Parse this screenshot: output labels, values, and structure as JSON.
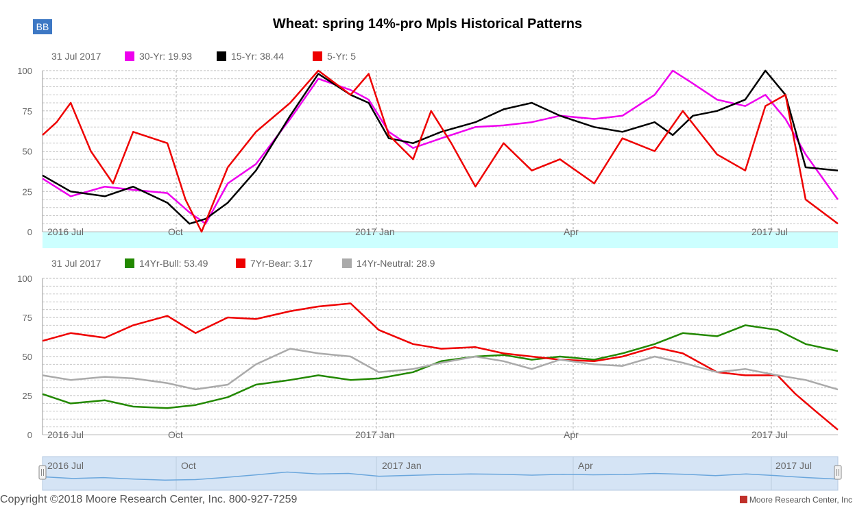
{
  "toolbar": {
    "bb_label": "BB"
  },
  "title": "Wheat: spring 14%-pro Mpls Historical Patterns",
  "footer": {
    "copyright": "Copyright ©2018 Moore Research Center, Inc. 800-927-7259",
    "brand": "Moore Research Center, Inc"
  },
  "colors": {
    "magenta": "#ee00ee",
    "black": "#000000",
    "red": "#ee0000",
    "green": "#228800",
    "gray": "#aaaaaa",
    "navigator_line": "#6aa6dc",
    "navigator_bg": "#d5e4f5",
    "band": "#ccffff"
  },
  "chart_data": [
    {
      "type": "line",
      "legend_date": "31 Jul 2017",
      "legend": [
        {
          "label": "30-Yr: 19.93",
          "color": "#ee00ee"
        },
        {
          "label": "15-Yr: 38.44",
          "color": "#000000"
        },
        {
          "label": "5-Yr: 5",
          "color": "#ee0000"
        }
      ],
      "ylim": [
        0,
        100
      ],
      "yticks": [
        0,
        25,
        50,
        75,
        100
      ],
      "x_labels": [
        "2016 Jul",
        "Oct",
        "2017 Jan",
        "Apr",
        "2017 Jul"
      ],
      "x_range": [
        "2016-07-01",
        "2017-07-31"
      ],
      "series": [
        {
          "name": "30-Yr",
          "color": "#ee00ee",
          "x": [
            "2016-07-01",
            "2016-07-15",
            "2016-08-01",
            "2016-08-15",
            "2016-09-01",
            "2016-09-12",
            "2016-09-20",
            "2016-10-01",
            "2016-10-15",
            "2016-11-01",
            "2016-11-15",
            "2016-12-01",
            "2016-12-10",
            "2016-12-20",
            "2017-01-01",
            "2017-01-15",
            "2017-02-01",
            "2017-02-15",
            "2017-03-01",
            "2017-03-15",
            "2017-04-01",
            "2017-04-15",
            "2017-05-01",
            "2017-05-10",
            "2017-05-20",
            "2017-06-01",
            "2017-06-15",
            "2017-06-25",
            "2017-07-05",
            "2017-07-15",
            "2017-07-31"
          ],
          "y": [
            33,
            22,
            28,
            26,
            24,
            12,
            5,
            30,
            42,
            70,
            95,
            88,
            82,
            62,
            52,
            58,
            65,
            66,
            68,
            72,
            70,
            72,
            85,
            100,
            92,
            82,
            78,
            85,
            70,
            48,
            20
          ]
        },
        {
          "name": "15-Yr",
          "color": "#000000",
          "x": [
            "2016-07-01",
            "2016-07-15",
            "2016-08-01",
            "2016-08-15",
            "2016-09-01",
            "2016-09-12",
            "2016-09-20",
            "2016-10-01",
            "2016-10-15",
            "2016-11-01",
            "2016-11-15",
            "2016-12-01",
            "2016-12-10",
            "2016-12-20",
            "2017-01-01",
            "2017-01-15",
            "2017-02-01",
            "2017-02-15",
            "2017-03-01",
            "2017-03-15",
            "2017-04-01",
            "2017-04-15",
            "2017-05-01",
            "2017-05-10",
            "2017-05-20",
            "2017-06-01",
            "2017-06-15",
            "2017-06-25",
            "2017-07-05",
            "2017-07-15",
            "2017-07-31"
          ],
          "y": [
            35,
            25,
            22,
            28,
            18,
            5,
            8,
            18,
            38,
            72,
            98,
            85,
            80,
            58,
            55,
            62,
            68,
            76,
            80,
            72,
            65,
            62,
            68,
            60,
            72,
            75,
            82,
            100,
            85,
            40,
            38
          ]
        },
        {
          "name": "5-Yr",
          "color": "#ee0000",
          "x": [
            "2016-07-01",
            "2016-07-08",
            "2016-07-15",
            "2016-07-25",
            "2016-08-05",
            "2016-08-15",
            "2016-09-01",
            "2016-09-10",
            "2016-09-18",
            "2016-10-01",
            "2016-10-15",
            "2016-11-01",
            "2016-11-15",
            "2016-12-01",
            "2016-12-10",
            "2016-12-20",
            "2017-01-01",
            "2017-01-10",
            "2017-01-20",
            "2017-02-01",
            "2017-02-15",
            "2017-03-01",
            "2017-03-15",
            "2017-04-01",
            "2017-04-15",
            "2017-05-01",
            "2017-05-15",
            "2017-06-01",
            "2017-06-15",
            "2017-06-25",
            "2017-07-05",
            "2017-07-15",
            "2017-07-31"
          ],
          "y": [
            60,
            68,
            80,
            50,
            30,
            62,
            55,
            20,
            0,
            40,
            62,
            80,
            100,
            85,
            98,
            60,
            45,
            75,
            55,
            28,
            55,
            38,
            45,
            30,
            58,
            50,
            75,
            48,
            38,
            78,
            85,
            20,
            5
          ]
        }
      ]
    },
    {
      "type": "line",
      "legend_date": "31 Jul 2017",
      "legend": [
        {
          "label": "14Yr-Bull: 53.49",
          "color": "#228800"
        },
        {
          "label": "7Yr-Bear: 3.17",
          "color": "#ee0000"
        },
        {
          "label": "14Yr-Neutral: 28.9",
          "color": "#aaaaaa"
        }
      ],
      "ylim": [
        0,
        100
      ],
      "yticks": [
        0,
        25,
        50,
        75,
        100
      ],
      "x_labels": [
        "2016 Jul",
        "Oct",
        "2017 Jan",
        "Apr",
        "2017 Jul"
      ],
      "x_range": [
        "2016-07-01",
        "2017-07-31"
      ],
      "series": [
        {
          "name": "14Yr-Bull",
          "color": "#228800",
          "x": [
            "2016-07-01",
            "2016-07-15",
            "2016-08-01",
            "2016-08-15",
            "2016-09-01",
            "2016-09-15",
            "2016-10-01",
            "2016-10-15",
            "2016-11-01",
            "2016-11-15",
            "2016-12-01",
            "2016-12-15",
            "2017-01-01",
            "2017-01-15",
            "2017-02-01",
            "2017-02-15",
            "2017-03-01",
            "2017-03-15",
            "2017-04-01",
            "2017-04-15",
            "2017-05-01",
            "2017-05-15",
            "2017-06-01",
            "2017-06-15",
            "2017-07-01",
            "2017-07-15",
            "2017-07-31"
          ],
          "y": [
            26,
            20,
            22,
            18,
            17,
            19,
            24,
            32,
            35,
            38,
            35,
            36,
            40,
            47,
            50,
            51,
            48,
            50,
            48,
            52,
            58,
            65,
            63,
            70,
            67,
            58,
            53.49
          ]
        },
        {
          "name": "7Yr-Bear",
          "color": "#ee0000",
          "x": [
            "2016-07-01",
            "2016-07-15",
            "2016-08-01",
            "2016-08-15",
            "2016-09-01",
            "2016-09-15",
            "2016-10-01",
            "2016-10-15",
            "2016-11-01",
            "2016-11-15",
            "2016-12-01",
            "2016-12-15",
            "2017-01-01",
            "2017-01-15",
            "2017-02-01",
            "2017-02-15",
            "2017-03-01",
            "2017-03-15",
            "2017-04-01",
            "2017-04-15",
            "2017-05-01",
            "2017-05-15",
            "2017-06-01",
            "2017-06-15",
            "2017-07-01",
            "2017-07-10",
            "2017-07-20",
            "2017-07-31"
          ],
          "y": [
            60,
            65,
            62,
            70,
            76,
            65,
            75,
            74,
            79,
            82,
            84,
            67,
            58,
            55,
            56,
            52,
            50,
            48,
            47,
            50,
            56,
            52,
            40,
            38,
            38,
            26,
            15,
            3.17
          ]
        },
        {
          "name": "14Yr-Neutral",
          "color": "#aaaaaa",
          "x": [
            "2016-07-01",
            "2016-07-15",
            "2016-08-01",
            "2016-08-15",
            "2016-09-01",
            "2016-09-15",
            "2016-10-01",
            "2016-10-15",
            "2016-11-01",
            "2016-11-15",
            "2016-12-01",
            "2016-12-15",
            "2017-01-01",
            "2017-01-15",
            "2017-02-01",
            "2017-02-15",
            "2017-03-01",
            "2017-03-15",
            "2017-04-01",
            "2017-04-15",
            "2017-05-01",
            "2017-05-15",
            "2017-06-01",
            "2017-06-15",
            "2017-07-01",
            "2017-07-15",
            "2017-07-31"
          ],
          "y": [
            38,
            35,
            37,
            36,
            33,
            29,
            32,
            45,
            55,
            52,
            50,
            40,
            42,
            46,
            50,
            47,
            42,
            48,
            45,
            44,
            50,
            46,
            40,
            42,
            38,
            35,
            28.9
          ]
        }
      ]
    }
  ],
  "navigator": {
    "labels": [
      "2016 Jul",
      "Oct",
      "2017 Jan",
      "Apr",
      "2017 Jul"
    ],
    "y": [
      38,
      32,
      35,
      30,
      26,
      28,
      36,
      45,
      55,
      48,
      50,
      40,
      43,
      46,
      48,
      47,
      44,
      47,
      45,
      46,
      50,
      47,
      42,
      48,
      42,
      35,
      30
    ]
  }
}
